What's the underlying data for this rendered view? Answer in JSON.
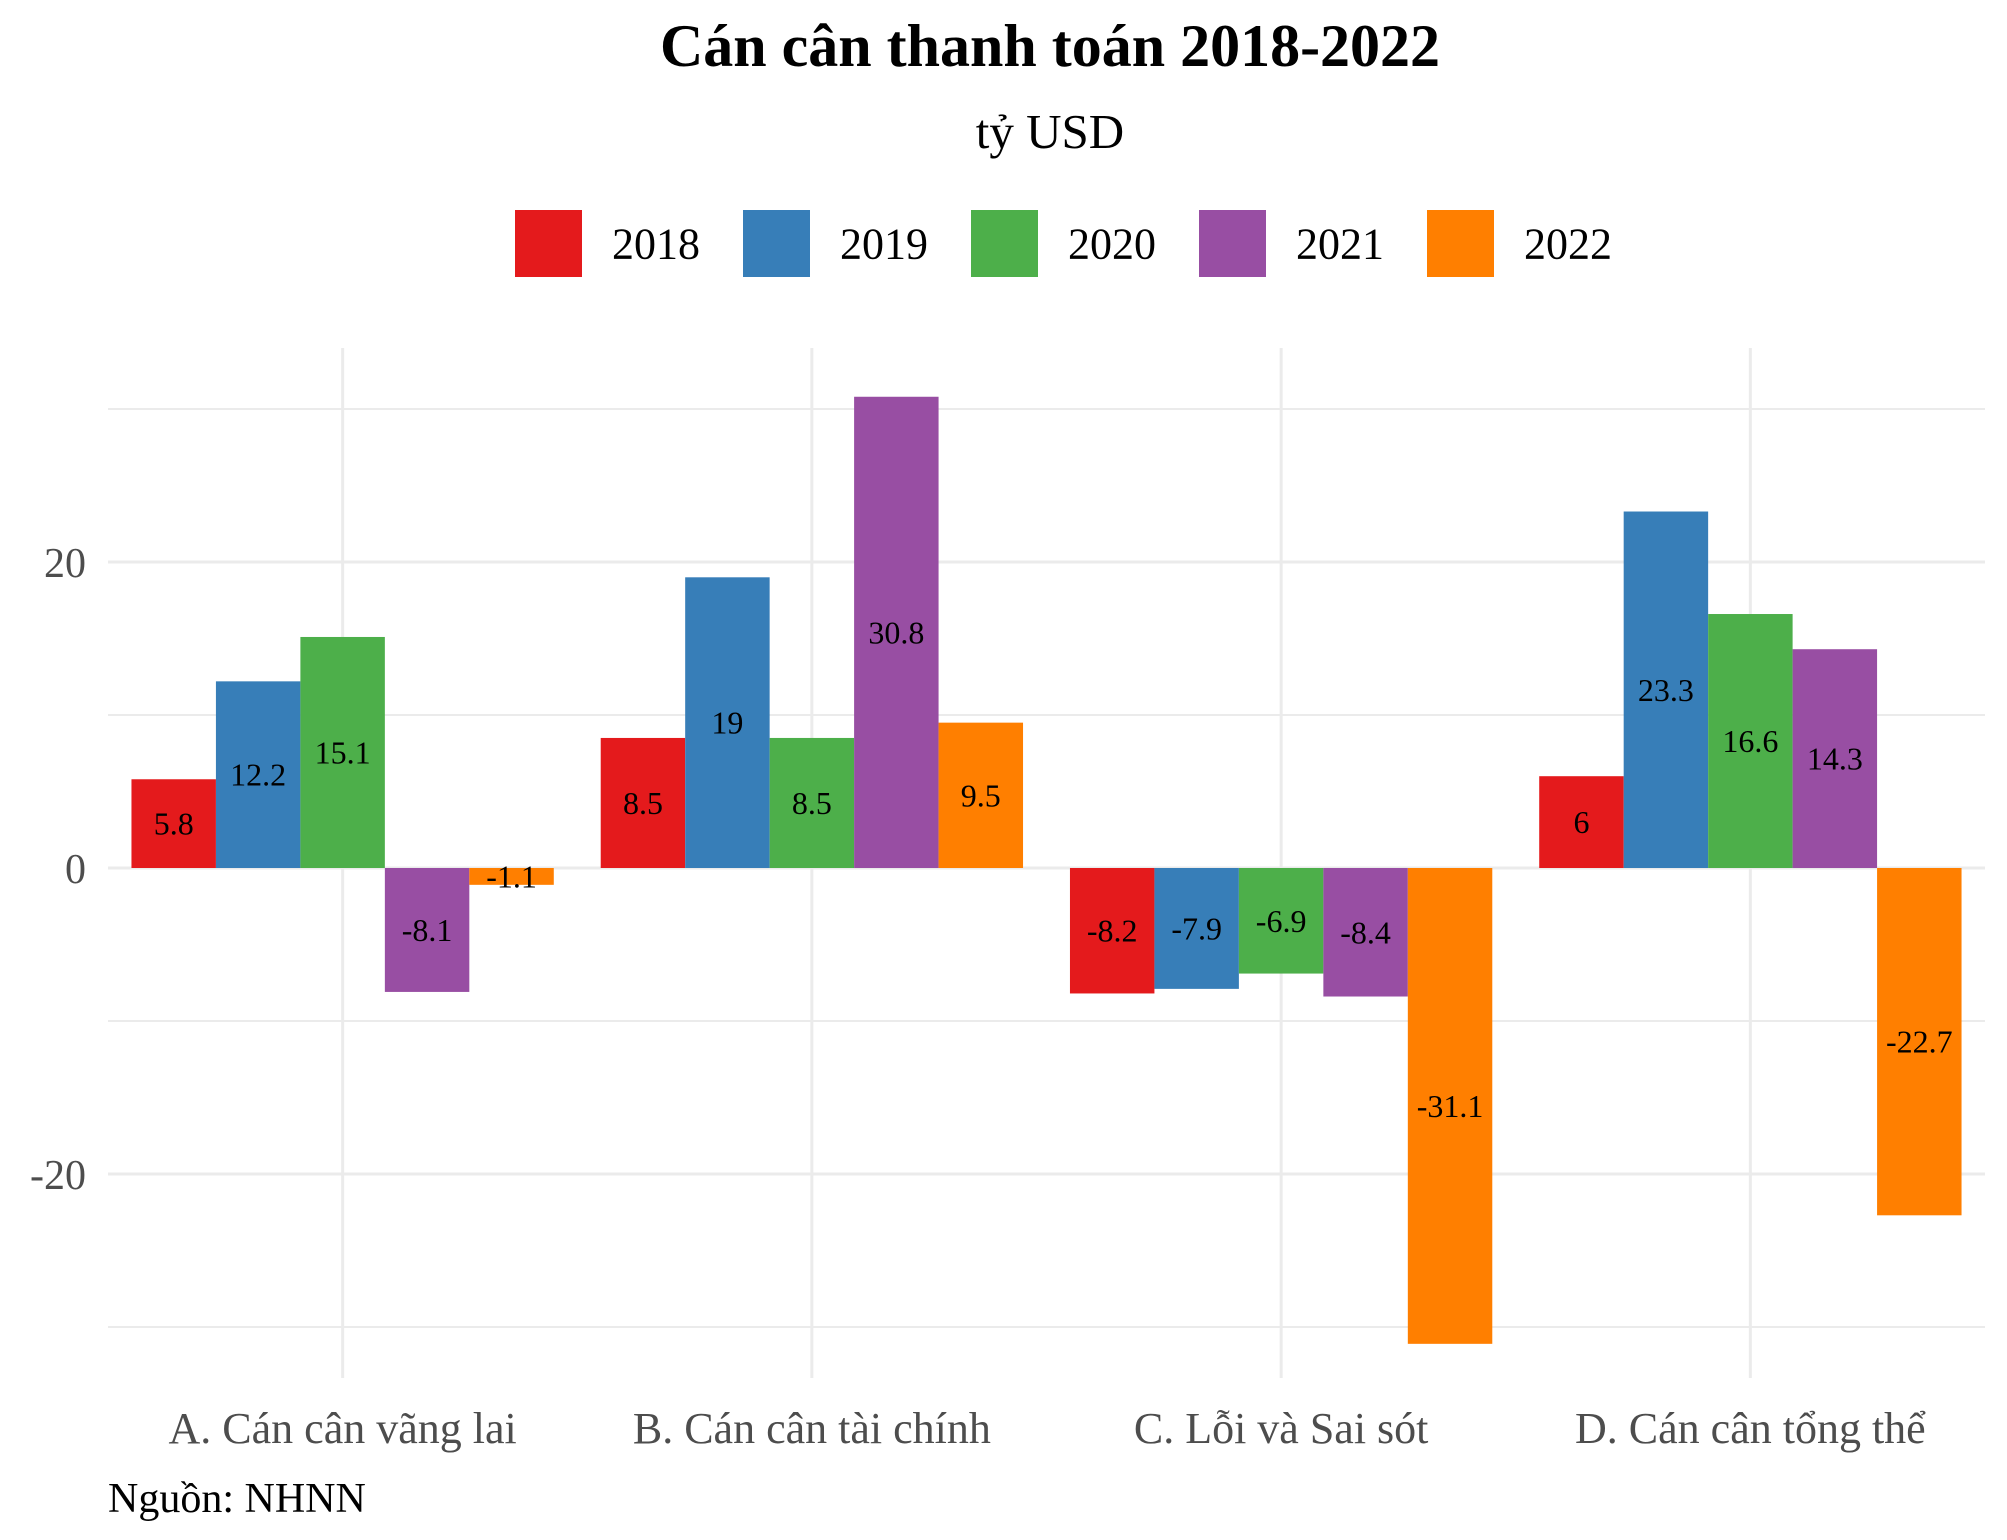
{
  "chart_data": {
    "type": "bar",
    "title": "Cán cân thanh toán 2018-2022",
    "subtitle": "tỷ USD",
    "caption": "Nguồn: NHNN",
    "xlabel": "",
    "ylabel": "",
    "categories": [
      "A. Cán cân vãng lai",
      "B. Cán cân tài chính",
      "C. Lỗi và Sai sót",
      "D. Cán cân tổng thể"
    ],
    "series": [
      {
        "name": "2018",
        "color": "#E41A1C",
        "values": [
          5.8,
          8.5,
          -8.2,
          6
        ]
      },
      {
        "name": "2019",
        "color": "#377EB8",
        "values": [
          12.2,
          19,
          -7.9,
          23.3
        ]
      },
      {
        "name": "2020",
        "color": "#4DAF4A",
        "values": [
          15.1,
          8.5,
          -6.9,
          16.6
        ]
      },
      {
        "name": "2021",
        "color": "#984EA3",
        "values": [
          -8.1,
          30.8,
          -8.4,
          14.3
        ]
      },
      {
        "name": "2022",
        "color": "#FF7F00",
        "values": [
          -1.1,
          9.5,
          -31.1,
          -22.7
        ]
      }
    ],
    "y_ticks": [
      -20,
      0,
      20
    ],
    "ylim": [
      -33.5,
      34
    ],
    "grid": true,
    "legend_position": "top",
    "bar_labels": true
  }
}
